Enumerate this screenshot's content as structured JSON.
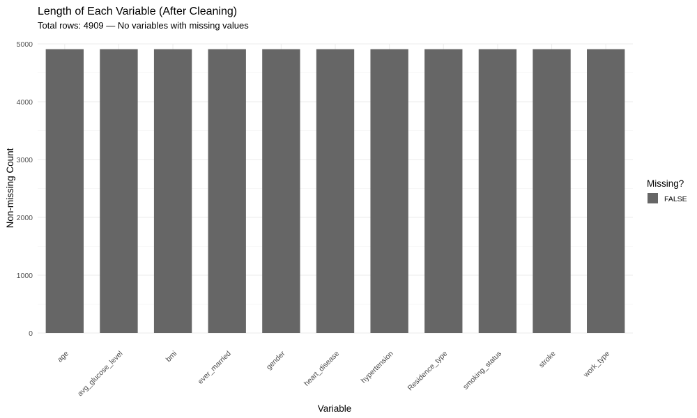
{
  "chart_data": {
    "type": "bar",
    "title": "Length of Each Variable (After Cleaning)",
    "subtitle": "Total rows: 4909 — No variables with missing values",
    "xlabel": "Variable",
    "ylabel": "Non-missing Count",
    "categories": [
      "age",
      "avg_glucose_level",
      "bmi",
      "ever_married",
      "gender",
      "heart_disease",
      "hypertension",
      "Residence_type",
      "smoking_status",
      "stroke",
      "work_type"
    ],
    "series": [
      {
        "name": "FALSE",
        "values": [
          4909,
          4909,
          4909,
          4909,
          4909,
          4909,
          4909,
          4909,
          4909,
          4909,
          4909
        ]
      }
    ],
    "ylim": [
      0,
      5000
    ],
    "yticks": [
      0,
      1000,
      2000,
      3000,
      4000,
      5000
    ],
    "ytick_labels": [
      "0",
      "1000",
      "2000",
      "3000",
      "4000",
      "5000"
    ],
    "grid": true,
    "legend": {
      "title": "Missing?",
      "placement": "right",
      "entries": [
        {
          "label": "FALSE",
          "color": "#666666"
        }
      ]
    },
    "bar_color": "#666666"
  }
}
